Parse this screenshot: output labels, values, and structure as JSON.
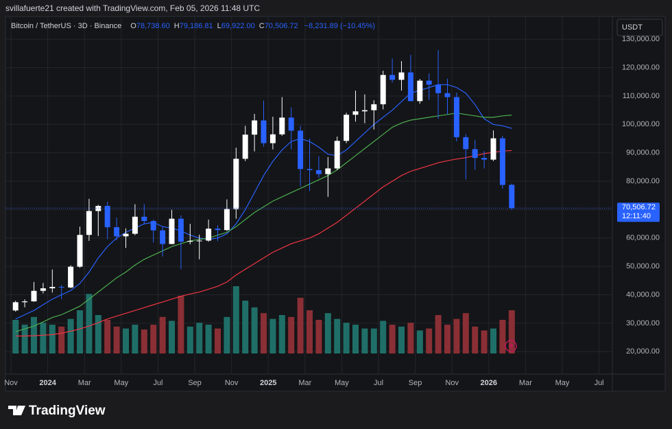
{
  "watermark": "svillafuerte21 created with TradingView.com, Feb 05, 2026 11:48 UTC",
  "chart_data": {
    "type": "candlestick",
    "symbol": "Bitcoin / TetherUS · 3D · Binance",
    "legend": [
      {
        "key": "O",
        "text": "78,738.60"
      },
      {
        "key": "H",
        "text": "79,186.81"
      },
      {
        "key": "L",
        "text": "69,922.00"
      },
      {
        "key": "C",
        "text": "70,506.72"
      }
    ],
    "change": "−8,231.89 (−10.45%)",
    "currency": "USDT",
    "categories": [
      "Nov",
      null,
      null,
      null,
      "2024",
      null,
      null,
      null,
      "Mar",
      null,
      null,
      null,
      "May",
      null,
      null,
      null,
      "Jul",
      null,
      null,
      null,
      "Sep",
      null,
      null,
      null,
      "Nov",
      null,
      null,
      null,
      "2025",
      null,
      null,
      null,
      "Mar",
      null,
      null,
      null,
      "May",
      null,
      null,
      null,
      "Jul",
      null,
      null,
      null,
      "Sep",
      null,
      null,
      null,
      "Nov",
      null,
      null,
      null,
      "2026",
      null,
      null,
      null,
      "Mar",
      null,
      null,
      null,
      "May",
      null,
      null,
      null,
      "Jul",
      null
    ],
    "open": [
      34500,
      37400,
      37700,
      41400,
      42300,
      42800,
      42600,
      49900,
      61100,
      69500,
      71300,
      63800,
      60600,
      61500,
      67500,
      66000,
      62700,
      57900,
      66800,
      58700,
      59000,
      59100,
      63300,
      62800,
      70200,
      87900,
      96400,
      101400,
      93400,
      96500,
      102400,
      97800,
      84300,
      83900,
      82500,
      84500,
      94200,
      103400,
      104600,
      105000,
      107100,
      117400,
      115700,
      118300,
      108200,
      115400,
      114000,
      111000,
      109600,
      95500,
      91300,
      88200,
      87600,
      95100,
      78738.6,
      null,
      null,
      null,
      null,
      null,
      null,
      null,
      null,
      null,
      null,
      null
    ],
    "high": [
      37900,
      38400,
      44500,
      44200,
      48900,
      43500,
      50400,
      64000,
      73800,
      71700,
      72800,
      67200,
      63400,
      71900,
      71900,
      66500,
      63800,
      69900,
      68000,
      65000,
      61200,
      66500,
      64500,
      73600,
      91800,
      99500,
      103700,
      108400,
      102700,
      109600,
      106000,
      99500,
      95000,
      88800,
      88500,
      95700,
      104100,
      111900,
      110600,
      108500,
      118900,
      123200,
      122300,
      124500,
      116000,
      117900,
      126200,
      116100,
      111200,
      96600,
      94600,
      90600,
      97900,
      96000,
      79186.81,
      null,
      null,
      null,
      null,
      null,
      null,
      null,
      null,
      null,
      null,
      null
    ],
    "low": [
      34100,
      35600,
      37600,
      40500,
      40800,
      38500,
      42300,
      49500,
      59000,
      60700,
      59600,
      59200,
      56500,
      61000,
      65000,
      58400,
      53500,
      57800,
      49000,
      57800,
      52500,
      58700,
      58900,
      62500,
      66800,
      87100,
      90500,
      92200,
      91200,
      96000,
      91200,
      78200,
      76600,
      81200,
      74500,
      83900,
      93400,
      101000,
      100400,
      98200,
      105300,
      114700,
      111900,
      108100,
      107300,
      108600,
      102000,
      103500,
      94000,
      80600,
      84000,
      84500,
      87100,
      77400,
      69922,
      null,
      null,
      null,
      null,
      null,
      null,
      null,
      null,
      null,
      null,
      null
    ],
    "close": [
      37400,
      37700,
      41400,
      42300,
      42800,
      42600,
      49900,
      61100,
      69500,
      71300,
      63800,
      60600,
      61500,
      67500,
      66000,
      62700,
      57900,
      66800,
      58700,
      59000,
      59100,
      63300,
      62800,
      70200,
      87900,
      96400,
      101400,
      93400,
      96500,
      102400,
      97800,
      84300,
      83900,
      82500,
      84500,
      94200,
      103400,
      104600,
      105000,
      107100,
      117400,
      115700,
      118300,
      108200,
      115400,
      114000,
      111000,
      109600,
      95500,
      91300,
      88200,
      87600,
      95100,
      78700,
      70506.72,
      null,
      null,
      null,
      null,
      null,
      null,
      null,
      null,
      null,
      null,
      null
    ],
    "up_color": "#ffffff",
    "down_color": "#2962ff",
    "overlays": [
      {
        "color": "#2962ff",
        "values": [
          31500,
          33000,
          34500,
          36500,
          38500,
          40000,
          41500,
          44000,
          48000,
          53000,
          57000,
          60000,
          62000,
          63500,
          65000,
          65500,
          64000,
          63500,
          62500,
          61000,
          60000,
          59500,
          60000,
          61500,
          65000,
          70000,
          76000,
          82000,
          87000,
          91000,
          94000,
          95000,
          94000,
          92000,
          89500,
          89000,
          91000,
          94000,
          97000,
          100000,
          102500,
          105000,
          108000,
          111000,
          112000,
          113000,
          114000,
          114000,
          113000,
          111000,
          107000,
          102000,
          100000,
          99500,
          98600,
          null,
          null,
          null,
          null,
          null,
          null,
          null,
          null,
          null,
          null,
          null
        ]
      },
      {
        "color": "#4caf50",
        "values": [
          27000,
          28000,
          29000,
          30500,
          32000,
          33000,
          34500,
          36000,
          38500,
          41000,
          43500,
          46000,
          48000,
          50500,
          52500,
          54000,
          55500,
          57000,
          58000,
          59000,
          59500,
          60000,
          61000,
          62000,
          64000,
          66500,
          69000,
          71000,
          73000,
          74500,
          76000,
          77500,
          79000,
          80500,
          82000,
          84000,
          86500,
          89000,
          91500,
          94000,
          96500,
          99000,
          100500,
          101500,
          102000,
          102500,
          103000,
          103500,
          104000,
          103500,
          103000,
          102500,
          102500,
          103000,
          103300,
          null,
          null,
          null,
          null,
          null,
          null,
          null,
          null,
          null,
          null,
          null
        ]
      },
      {
        "color": "#f23645",
        "values": [
          25500,
          25500,
          25600,
          25800,
          26000,
          26500,
          27200,
          28000,
          29000,
          30200,
          31500,
          32500,
          33500,
          34500,
          35500,
          36500,
          37500,
          38500,
          39500,
          40300,
          41000,
          42000,
          43000,
          44500,
          47000,
          49000,
          51000,
          53000,
          55000,
          56500,
          58000,
          59000,
          60000,
          61500,
          63500,
          65500,
          68000,
          70500,
          73000,
          75500,
          78000,
          80000,
          82000,
          83500,
          84500,
          85500,
          86500,
          87200,
          87800,
          88300,
          89000,
          89700,
          90200,
          90600,
          90800,
          null,
          null,
          null,
          null,
          null,
          null,
          null,
          null,
          null,
          null,
          null
        ]
      }
    ],
    "volume": {
      "up_color": "#1f6f68",
      "down_color": "#8a2f35",
      "y2lim": [
        0,
        100
      ],
      "values": [
        35,
        30,
        38,
        32,
        30,
        28,
        36,
        45,
        62,
        40,
        35,
        28,
        26,
        30,
        25,
        30,
        38,
        34,
        60,
        28,
        32,
        30,
        26,
        38,
        70,
        55,
        48,
        42,
        36,
        40,
        38,
        58,
        45,
        35,
        42,
        36,
        32,
        30,
        26,
        26,
        34,
        30,
        28,
        32,
        24,
        26,
        40,
        30,
        36,
        42,
        28,
        24,
        26,
        35,
        45,
        null,
        null,
        null,
        null,
        null,
        null,
        null,
        null,
        null,
        null,
        null
      ]
    },
    "ylim": [
      12100,
      138000
    ],
    "yticks": [
      {
        "value": 20000,
        "label": "20,000.00"
      },
      {
        "value": 30000,
        "label": "30,000.00"
      },
      {
        "value": 40000,
        "label": "40,000.00"
      },
      {
        "value": 50000,
        "label": "50,000.00"
      },
      {
        "value": 60000,
        "label": "60,000.00"
      },
      {
        "value": 70000,
        "label": "70,000.00"
      },
      {
        "value": 80000,
        "label": "80,000.00"
      },
      {
        "value": 90000,
        "label": "90,000.00"
      },
      {
        "value": 100000,
        "label": "100,000.00"
      },
      {
        "value": 110000,
        "label": "110,000.00"
      },
      {
        "value": 120000,
        "label": "120,000.00"
      },
      {
        "value": 130000,
        "label": "130,000.00"
      }
    ],
    "last_price": {
      "value": 70506.72,
      "label": "70,506.72"
    },
    "countdown": "12:11:40",
    "grid": true
  },
  "footer": {
    "logo": "TradingView"
  }
}
